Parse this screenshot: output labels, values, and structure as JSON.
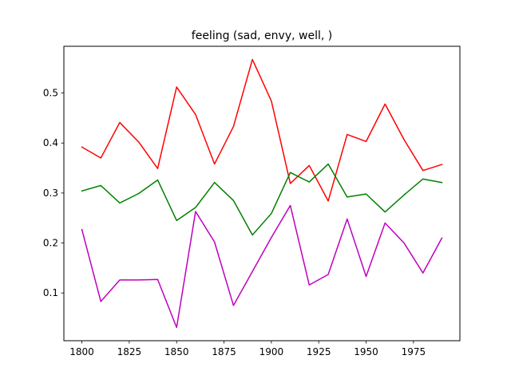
{
  "chart_data": {
    "type": "line",
    "title": "feeling (sad, envy, well, )",
    "xlabel": "",
    "ylabel": "",
    "x": [
      1800,
      1810,
      1820,
      1830,
      1840,
      1850,
      1860,
      1870,
      1880,
      1890,
      1900,
      1910,
      1920,
      1930,
      1940,
      1950,
      1960,
      1970,
      1980,
      1990
    ],
    "xlim": [
      1790.5,
      1999.5
    ],
    "ylim": [
      0.0045,
      0.5935
    ],
    "xticks": [
      1800,
      1825,
      1850,
      1875,
      1900,
      1925,
      1950,
      1975
    ],
    "yticks": [
      0.1,
      0.2,
      0.3,
      0.4,
      0.5
    ],
    "grid": false,
    "series": [
      {
        "color": "#ff0000",
        "values": [
          0.392,
          0.37,
          0.441,
          0.402,
          0.349,
          0.512,
          0.457,
          0.358,
          0.433,
          0.567,
          0.484,
          0.319,
          0.355,
          0.284,
          0.417,
          0.403,
          0.478,
          0.407,
          0.345,
          0.357
        ]
      },
      {
        "color": "#008000",
        "values": [
          0.304,
          0.315,
          0.28,
          0.299,
          0.326,
          0.245,
          0.271,
          0.321,
          0.285,
          0.216,
          0.259,
          0.341,
          0.322,
          0.358,
          0.292,
          0.298,
          0.262,
          0.296,
          0.328,
          0.321
        ]
      },
      {
        "color": "#bf00bf",
        "values": [
          0.227,
          0.083,
          0.126,
          0.126,
          0.127,
          0.031,
          0.263,
          0.202,
          0.075,
          0.143,
          0.211,
          0.275,
          0.116,
          0.137,
          0.248,
          0.133,
          0.24,
          0.2,
          0.14,
          0.21
        ]
      }
    ]
  }
}
